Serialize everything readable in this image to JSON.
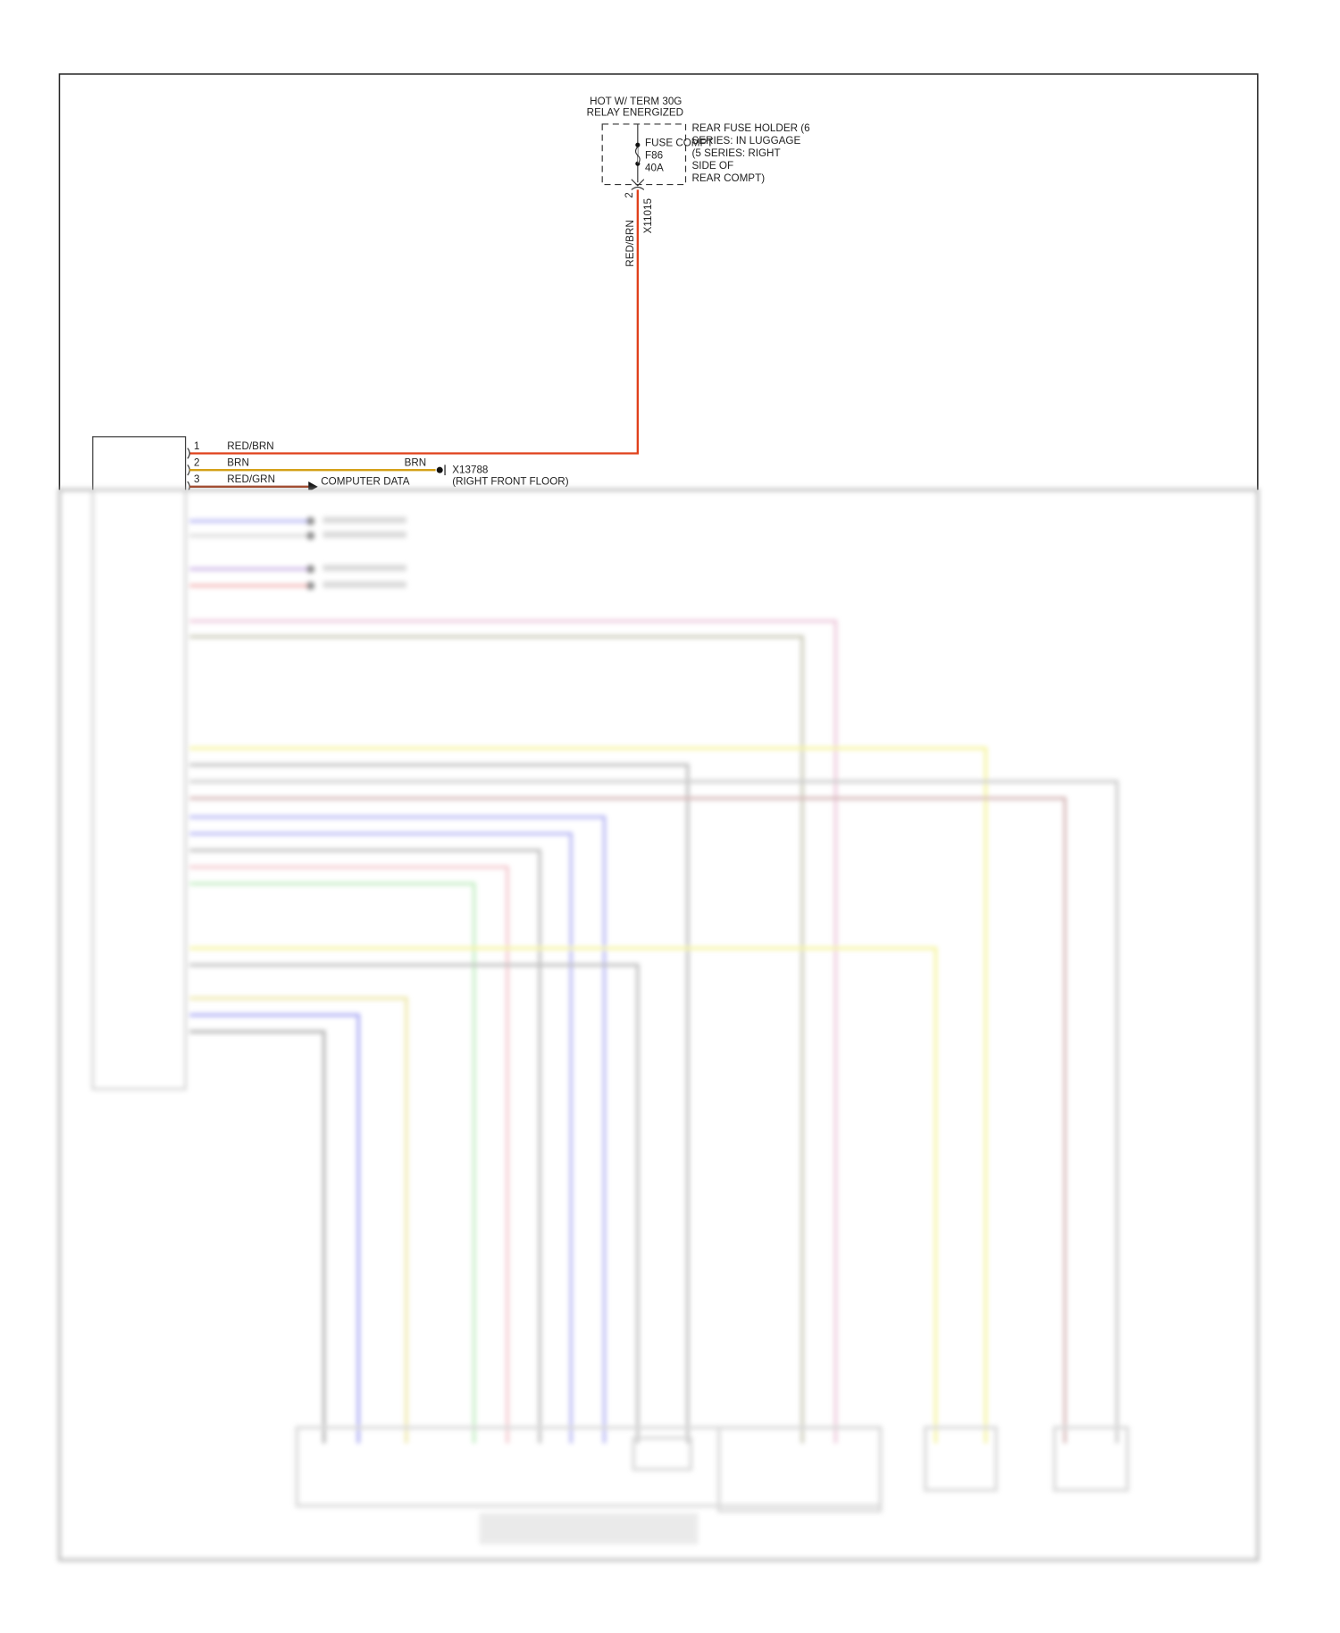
{
  "power_source": {
    "line1": "HOT W/ TERM 30G",
    "line2": "RELAY ENERGIZED"
  },
  "fuse": {
    "label": "FUSE COMPT",
    "id": "F86",
    "rating": "40A"
  },
  "fuse_holder": {
    "lines": [
      "REAR FUSE HOLDER (6",
      "SERIES: IN LUGGAGE",
      "(5 SERIES: RIGHT",
      "SIDE OF",
      "REAR COMPT)"
    ]
  },
  "connector_top": {
    "pin": "2",
    "id": "X11015",
    "wire": "RED/BRN"
  },
  "module_wires": [
    {
      "pin": "1",
      "color_label": "RED/BRN",
      "color": "#e0401a"
    },
    {
      "pin": "2",
      "color_label": "BRN",
      "color": "#d4a017",
      "end_label": "BRN"
    },
    {
      "pin": "3",
      "color_label": "RED/GRN",
      "color": "#a03a1a"
    }
  ],
  "ground": {
    "id": "X13788",
    "location": "(RIGHT FRONT FLOOR)"
  },
  "computer_data": {
    "label": "COMPUTER DATA"
  },
  "colors": {
    "frame": "#222222",
    "red_brn": "#e0401a",
    "brn": "#d4a017"
  }
}
